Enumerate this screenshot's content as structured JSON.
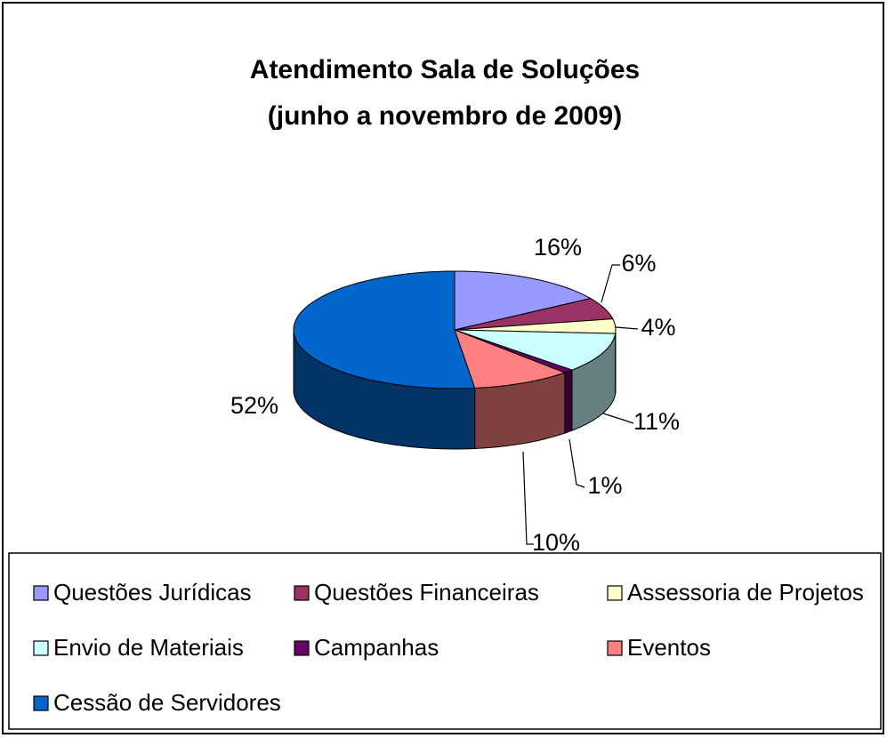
{
  "chart_data": {
    "type": "pie3d",
    "title": "Atendimento Sala de Soluções",
    "subtitle": "(junho a novembro de 2009)",
    "categories": [
      "Questões Jurídicas",
      "Questões Financeiras",
      "Assessoria de Projetos",
      "Envio de Materiais",
      "Campanhas",
      "Eventos",
      "Cessão de Servidores"
    ],
    "values": [
      16,
      6,
      4,
      11,
      1,
      10,
      52
    ],
    "value_labels": [
      "16%",
      "6%",
      "4%",
      "11%",
      "1%",
      "10%",
      "52%"
    ],
    "colors": [
      "#9999ff",
      "#993366",
      "#ffffcc",
      "#ccffff",
      "#660066",
      "#ff8080",
      "#0066cc"
    ],
    "legend": "bottom"
  }
}
